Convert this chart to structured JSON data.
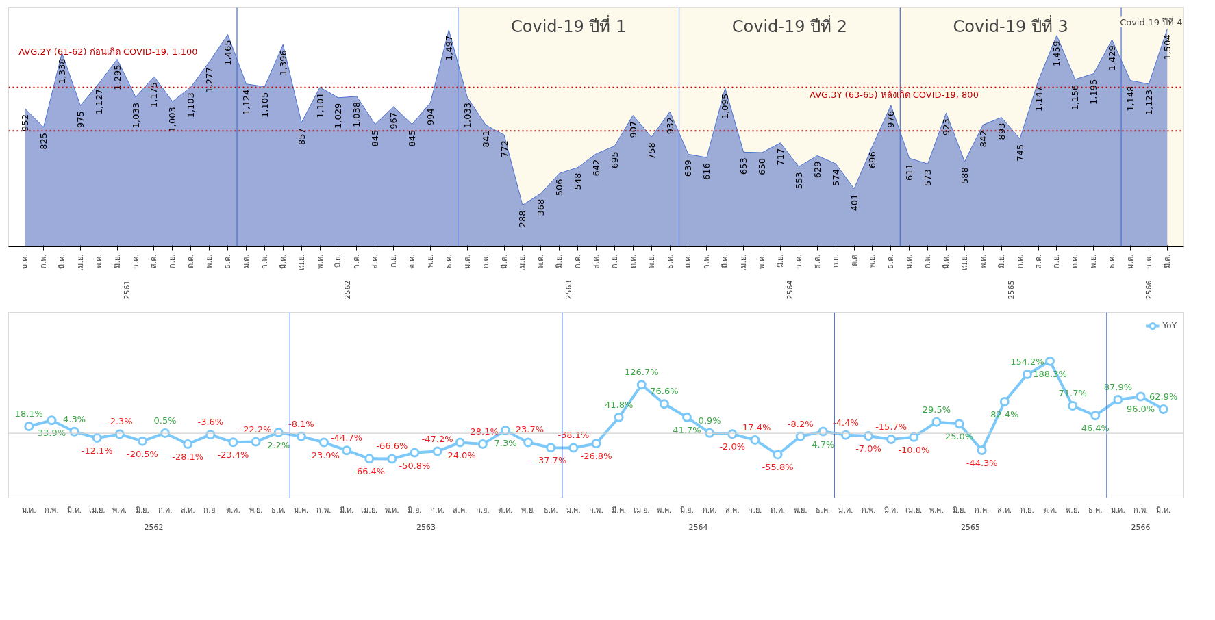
{
  "chart_data": [
    {
      "type": "area",
      "color": "#8c9cd3",
      "categories": [
        "ม.ค.",
        "ก.พ.",
        "มี.ค.",
        "เม.ย.",
        "พ.ค.",
        "มิ.ย.",
        "ก.ค.",
        "ส.ค.",
        "ก.ย.",
        "ต.ค.",
        "พ.ย.",
        "ธ.ค.",
        "ม.ค.",
        "ก.พ.",
        "มี.ค.",
        "เม.ย.",
        "พ.ค.",
        "มิ.ย.",
        "ก.ค.",
        "ส.ค.",
        "ก.ย.",
        "ต.ค.",
        "พ.ย.",
        "ธ.ค.",
        "ม.ค.",
        "ก.พ.",
        "มี.ค.",
        "เม.ย.",
        "พ.ค.",
        "มิ.ย.",
        "ก.ค.",
        "ส.ค.",
        "ก.ย.",
        "ต.ค.",
        "พ.ย.",
        "ธ.ค.",
        "ม.ค.",
        "ก.พ.",
        "มี.ค.",
        "เม.ย.",
        "พ.ค.",
        "มิ.ย.",
        "ก.ค.",
        "ส.ค.",
        "ก.ย.",
        "ต.ค",
        "พ.ย.",
        "ธ.ค.",
        "ม.ค.",
        "ก.พ.",
        "มี.ค.",
        "เม.ย.",
        "พ.ค.",
        "มิ.ย.",
        "ก.ค.",
        "ส.ค.",
        "ก.ย.",
        "ต.ค.",
        "พ.ย.",
        "ธ.ค.",
        "ม.ค.",
        "ก.พ.",
        "มี.ค."
      ],
      "values": [
        952,
        825,
        1338,
        975,
        1127,
        1295,
        1033,
        1175,
        1003,
        1103,
        1277,
        1465,
        1124,
        1105,
        1396,
        857,
        1101,
        1029,
        1038,
        845,
        967,
        845,
        994,
        1497,
        1033,
        841,
        772,
        288,
        368,
        506,
        548,
        642,
        695,
        907,
        758,
        932,
        639,
        616,
        1095,
        653,
        650,
        717,
        553,
        629,
        574,
        401,
        696,
        976,
        611,
        573,
        923,
        588,
        842,
        893,
        745,
        1147,
        1459,
        1156,
        1195,
        1429,
        1148,
        1123,
        1504
      ],
      "value_labels": [
        "952",
        "825",
        "1,338",
        "975",
        "1,127",
        "1,295",
        "1,033",
        "1,175",
        "1,003",
        "1,103",
        "1,277",
        "1,465",
        "1,124",
        "1,105",
        "1,396",
        "857",
        "1,101",
        "1,029",
        "1,038",
        "845",
        "967",
        "845",
        "994",
        "1,497",
        "1,033",
        "841",
        "772",
        "288",
        "368",
        "506",
        "548",
        "642",
        "695",
        "907",
        "758",
        "932",
        "639",
        "616",
        "1,095",
        "653",
        "650",
        "717",
        "553",
        "629",
        "574",
        "401",
        "696",
        "976",
        "611",
        "573",
        "923",
        "588",
        "842",
        "893",
        "745",
        "1,147",
        "1,459",
        "1,156",
        "1,195",
        "1,429",
        "1,148",
        "1,123",
        "1,504"
      ],
      "annotations": [
        "Covid-19 ปีที่ 1",
        "Covid-19 ปีที่ 2",
        "Covid-19 ปีที่ 3",
        "Covid-19 ปีที่ 4",
        "2561",
        "2562",
        "2563",
        "2564",
        "2565",
        "2566"
      ],
      "ref_lines": [
        {
          "axis": "y",
          "value": 1100,
          "label": "AVG.2Y (61-62) ก่อนเกิด COVID-19,  1,100",
          "color": "#c00000",
          "line_style": "dotted"
        },
        {
          "axis": "y",
          "value": 800,
          "label": "AVG.3Y (63-65) หลังเกิด COVID-19,  800",
          "color": "#c00000",
          "line_style": "dotted"
        }
      ],
      "grid": false
    },
    {
      "type": "line",
      "marker": "circle",
      "legend": "top right",
      "grid": false,
      "categories": [
        "ม.ค.",
        "ก.พ.",
        "มี.ค.",
        "เม.ย.",
        "พ.ค.",
        "มิ.ย.",
        "ก.ค.",
        "ส.ค.",
        "ก.ย.",
        "ต.ค.",
        "พ.ย.",
        "ธ.ค.",
        "ม.ค.",
        "ก.พ.",
        "มี.ค.",
        "เม.ย.",
        "พ.ค.",
        "มิ.ย.",
        "ก.ค.",
        "ส.ค.",
        "ก.ย.",
        "ต.ค.",
        "พ.ย.",
        "ธ.ค.",
        "ม.ค.",
        "ก.พ.",
        "มี.ค.",
        "เม.ย.",
        "พ.ค.",
        "มิ.ย.",
        "ก.ค.",
        "ส.ค.",
        "ก.ย.",
        "ต.ค.",
        "พ.ย.",
        "ธ.ค.",
        "ม.ค.",
        "ก.พ.",
        "มี.ค.",
        "เม.ย.",
        "พ.ค.",
        "มิ.ย.",
        "ก.ค.",
        "ส.ค.",
        "ก.ย.",
        "ต.ค.",
        "พ.ย.",
        "ธ.ค.",
        "ม.ค.",
        "ก.พ.",
        "มี.ค."
      ],
      "series": [
        {
          "name": "YoY",
          "color": "#7cc8f8",
          "values": [
            18.1,
            33.9,
            4.3,
            -12.1,
            -2.3,
            -20.5,
            0.5,
            -28.1,
            -3.6,
            -23.4,
            -22.2,
            2.2,
            -8.1,
            -23.9,
            -44.7,
            -66.4,
            -66.6,
            -50.8,
            -47.2,
            -24.0,
            -28.1,
            7.3,
            -23.7,
            -37.7,
            -38.1,
            -26.8,
            41.8,
            126.7,
            76.6,
            41.7,
            0.9,
            -2.0,
            -17.4,
            -55.8,
            -8.2,
            4.7,
            -4.4,
            -7.0,
            -15.7,
            -10.0,
            29.5,
            25.0,
            -44.3,
            82.4,
            154.2,
            188.3,
            71.7,
            46.4,
            87.9,
            96.0,
            62.9
          ],
          "value_labels": [
            "18.1%",
            "33.9%",
            "4.3%",
            "-12.1%",
            "-2.3%",
            "-20.5%",
            "0.5%",
            "-28.1%",
            "-3.6%",
            "-23.4%",
            "-22.2%",
            "2.2%",
            "-8.1%",
            "-23.9%",
            "-44.7%",
            "-66.4%",
            "-66.6%",
            "-50.8%",
            "-47.2%",
            "-24.0%",
            "-28.1%",
            "7.3%",
            "-23.7%",
            "-37.7%",
            "-38.1%",
            "-26.8%",
            "41.8%",
            "126.7%",
            "76.6%",
            "41.7%",
            "0.9%",
            "-2.0%",
            "-17.4%",
            "-55.8%",
            "-8.2%",
            "4.7%",
            "-4.4%",
            "-7.0%",
            "-15.7%",
            "-10.0%",
            "29.5%",
            "25.0%",
            "-44.3%",
            "82.4%",
            "154.2%",
            "188.3%",
            "71.7%",
            "46.4%",
            "87.9%",
            "96.0%",
            "62.9%"
          ]
        }
      ],
      "annotations": [
        "2562",
        "2563",
        "2564",
        "2565",
        "2566"
      ],
      "ref_lines": [
        {
          "axis": "y",
          "value": 0,
          "color": "#d0d0d0",
          "line_style": "solid"
        }
      ]
    }
  ]
}
